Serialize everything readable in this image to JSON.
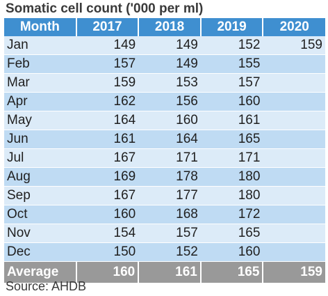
{
  "title": "Somatic cell count ('000 per ml)",
  "source": "Source: AHDB",
  "colors": {
    "header_bg": "#3f8fd0",
    "row_light": "#dcebf8",
    "row_dark": "#bfdbf3",
    "footer_bg": "#999999"
  },
  "table": {
    "columns": [
      "Month",
      "2017",
      "2018",
      "2019",
      "2020"
    ],
    "rows": [
      {
        "month": "Jan",
        "values": [
          "149",
          "149",
          "152",
          "159"
        ]
      },
      {
        "month": "Feb",
        "values": [
          "157",
          "149",
          "155",
          ""
        ]
      },
      {
        "month": "Mar",
        "values": [
          "159",
          "153",
          "157",
          ""
        ]
      },
      {
        "month": "Apr",
        "values": [
          "162",
          "156",
          "160",
          ""
        ]
      },
      {
        "month": "May",
        "values": [
          "164",
          "160",
          "161",
          ""
        ]
      },
      {
        "month": "Jun",
        "values": [
          "161",
          "164",
          "165",
          ""
        ]
      },
      {
        "month": "Jul",
        "values": [
          "167",
          "171",
          "171",
          ""
        ]
      },
      {
        "month": "Aug",
        "values": [
          "169",
          "178",
          "180",
          ""
        ]
      },
      {
        "month": "Sep",
        "values": [
          "167",
          "177",
          "180",
          ""
        ]
      },
      {
        "month": "Oct",
        "values": [
          "160",
          "168",
          "172",
          ""
        ]
      },
      {
        "month": "Nov",
        "values": [
          "154",
          "157",
          "165",
          ""
        ]
      },
      {
        "month": "Dec",
        "values": [
          "150",
          "152",
          "160",
          ""
        ]
      }
    ],
    "footer": {
      "label": "Average",
      "values": [
        "160",
        "161",
        "165",
        "159"
      ]
    }
  }
}
